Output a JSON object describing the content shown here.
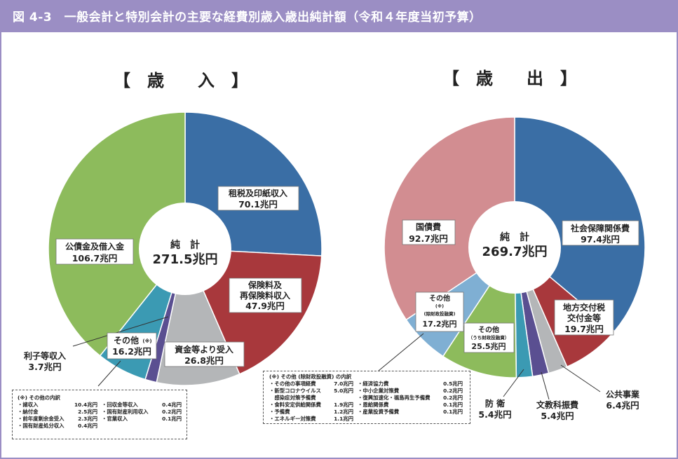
{
  "title": "図 4-3　一般会計と特別会計の主要な経費別歳入歳出純計額（令和４年度当初予算）",
  "colors": {
    "frame": "#9b8ec4",
    "blue": "#3a6ea5",
    "red": "#a8383c",
    "gray": "#b4b6b8",
    "purple": "#5a4f91",
    "teal": "#3b9ab3",
    "green": "#8dbb5c",
    "pink": "#d28d91",
    "lightblue": "#7fafd3"
  },
  "chart_data": [
    {
      "type": "pie",
      "title": "【　歳　　入　】",
      "center_label": "純　計",
      "center_value": "271.5兆円",
      "unit": "兆円",
      "slices": [
        {
          "name": "租税及印紙収入",
          "value": 70.1,
          "value_label": "70.1兆円",
          "color": "#3a6ea5"
        },
        {
          "name": "保険料及再保険料収入",
          "value": 47.9,
          "value_label": "47.9兆円",
          "color": "#a8383c"
        },
        {
          "name": "資金等より受入",
          "value": 26.8,
          "value_label": "26.8兆円",
          "color": "#b4b6b8"
        },
        {
          "name": "利子等収入",
          "value": 3.7,
          "value_label": "3.7兆円",
          "color": "#5a4f91"
        },
        {
          "name": "その他",
          "value": 16.2,
          "value_label": "16.2兆円",
          "color": "#3b9ab3"
        },
        {
          "name": "公債金及借入金",
          "value": 106.7,
          "value_label": "106.7兆円",
          "color": "#8dbb5c"
        }
      ]
    },
    {
      "type": "pie",
      "title": "【　歳　　出　】",
      "center_label": "純　計",
      "center_value": "269.7兆円",
      "unit": "兆円",
      "slices": [
        {
          "name": "社会保障関係費",
          "value": 97.4,
          "value_label": "97.4兆円",
          "color": "#3a6ea5"
        },
        {
          "name": "地方交付税交付金等",
          "value": 19.7,
          "value_label": "19.7兆円",
          "color": "#a8383c"
        },
        {
          "name": "公共事業",
          "value": 6.4,
          "value_label": "6.4兆円",
          "color": "#b4b6b8"
        },
        {
          "name": "文教科振費",
          "value": 5.4,
          "value_label": "5.4兆円",
          "color": "#5a4f91"
        },
        {
          "name": "防衛",
          "value": 5.4,
          "value_label": "5.4兆円",
          "color": "#3b9ab3"
        },
        {
          "name": "その他（うち財政投融資）",
          "value": 25.5,
          "value_label": "25.5兆円",
          "color": "#8dbb5c"
        },
        {
          "name": "その他（除財政投融資）",
          "value": 17.2,
          "value_label": "17.2兆円",
          "color": "#7fafd3"
        },
        {
          "name": "国債費",
          "value": 92.7,
          "value_label": "92.7兆円",
          "color": "#d28d91"
        }
      ]
    }
  ],
  "labels": {
    "rev_tax": [
      "租税及印紙収入",
      "70.1兆円"
    ],
    "rev_ins": [
      "保険料及",
      "再保険料収入",
      "47.9兆円"
    ],
    "rev_fund": [
      "資金等より受入",
      "26.8兆円"
    ],
    "rev_interest": [
      "利子等収入",
      "3.7兆円"
    ],
    "rev_other": [
      "その他",
      "(※)",
      "16.2兆円"
    ],
    "rev_bond": [
      "公債金及借入金",
      "106.7兆円"
    ],
    "exp_social": [
      "社会保障関係費",
      "97.4兆円"
    ],
    "exp_local": [
      "地方交付税",
      "交付金等",
      "19.7兆円"
    ],
    "exp_public": [
      "公共事業",
      "6.4兆円"
    ],
    "exp_edu": [
      "文教科振費",
      "5.4兆円"
    ],
    "exp_def": [
      "防 衛",
      "5.4兆円"
    ],
    "exp_other_fil": [
      "その他",
      "（うち財政投融資）",
      "25.5兆円"
    ],
    "exp_other_ex": [
      "その他",
      "(※)",
      "(除財政投融資)",
      "17.2兆円"
    ],
    "exp_debt": [
      "国債費",
      "92.7兆円"
    ]
  },
  "rev_note": {
    "title": "(※) その他の内訳",
    "rows": [
      [
        [
          "・諸収入",
          "10.4兆円"
        ],
        [
          "・回収金等収入",
          "0.4兆円"
        ]
      ],
      [
        [
          "・納付金",
          "2.5兆円"
        ],
        [
          "・国有財産利用収入",
          "0.2兆円"
        ]
      ],
      [
        [
          "・前年度剰余金受入",
          "2.3兆円"
        ],
        [
          "・官業収入",
          "0.1兆円"
        ]
      ],
      [
        [
          "・国有財産処分収入",
          "0.4兆円"
        ],
        [
          "",
          ""
        ]
      ]
    ]
  },
  "exp_note": {
    "title": "(※) その他 (除財政投融資) の内訳",
    "rows": [
      [
        [
          "・その他の事項経費",
          "7.0兆円"
        ],
        [
          "・経済協力費",
          "0.5兆円"
        ]
      ],
      [
        [
          "・新型コロナウイルス",
          "5.0兆円"
        ],
        [
          "・中小企業対策費",
          "0.2兆円"
        ]
      ],
      [
        [
          "　感染症対策予備費",
          ""
        ],
        [
          "・復興加速化・福島再生予備費",
          "0.2兆円"
        ]
      ],
      [
        [
          "・食料安定供給関係費",
          "1.9兆円"
        ],
        [
          "・恩給関係費",
          "0.1兆円"
        ]
      ],
      [
        [
          "・予備費",
          "1.2兆円"
        ],
        [
          "・産業投資予備費",
          "0.1兆円"
        ]
      ],
      [
        [
          "・エネルギー対策費",
          "1.1兆円"
        ],
        [
          "",
          ""
        ]
      ]
    ]
  }
}
